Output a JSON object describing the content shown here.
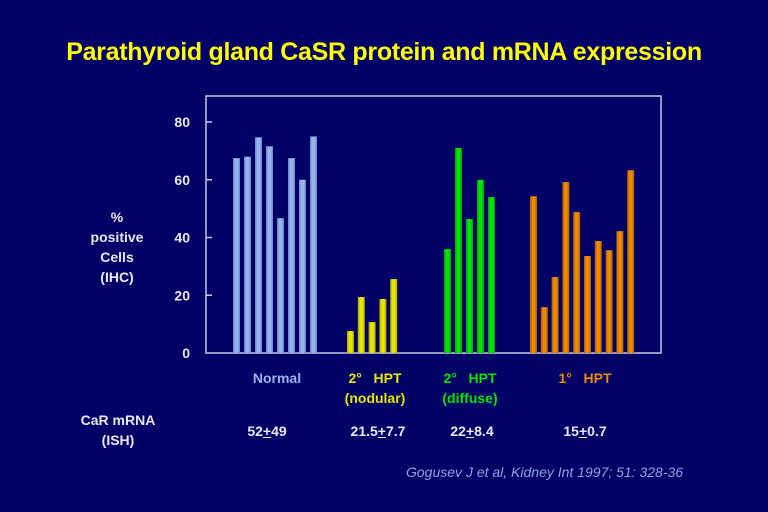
{
  "title": "Parathyroid gland CaSR protein and mRNA expression",
  "chart_data": {
    "type": "bar",
    "title": "Parathyroid gland CaSR protein and mRNA expression",
    "ylabel": [
      "%",
      "positive",
      "Cells",
      "(IHC)"
    ],
    "xlabel": "",
    "ylim": [
      0,
      88
    ],
    "yticks": [
      0,
      20,
      40,
      60,
      80
    ],
    "grid": false,
    "groups": [
      {
        "name": "Normal",
        "label_lines": [
          "Normal"
        ],
        "color": "#99b3ee",
        "values": [
          67.5,
          68,
          74.7,
          71.6,
          46.7,
          67.5,
          60,
          75
        ],
        "mrna": {
          "mean": "52",
          "sd": "49"
        }
      },
      {
        "name": "2° HPT (nodular)",
        "label_lines": [
          "2°   HPT",
          "(nodular)"
        ],
        "color": "#e6e600",
        "values": [
          7.6,
          19.4,
          10.7,
          18.7,
          25.6
        ],
        "mrna": {
          "mean": "21.5",
          "sd": "7.7"
        }
      },
      {
        "name": "2° HPT (diffuse)",
        "label_lines": [
          "2°   HPT",
          "(diffuse)"
        ],
        "color": "#00e600",
        "values": [
          36,
          71,
          46.4,
          60,
          54
        ],
        "mrna": {
          "mean": "22",
          "sd": "8.4"
        }
      },
      {
        "name": "1° HPT",
        "label_lines": [
          "1°   HPT"
        ],
        "color": "#ee8a00",
        "values": [
          54.3,
          15.9,
          26.3,
          59.2,
          48.8,
          33.6,
          38.8,
          35.6,
          42.2,
          63.3
        ],
        "mrna": {
          "mean": "15",
          "sd": "0.7"
        }
      }
    ]
  },
  "mrna_row_label": [
    "CaR mRNA",
    "(ISH)"
  ],
  "plus_sign": "+",
  "citation": "Gogusev J et al, Kidney Int 1997; 51: 328-36"
}
